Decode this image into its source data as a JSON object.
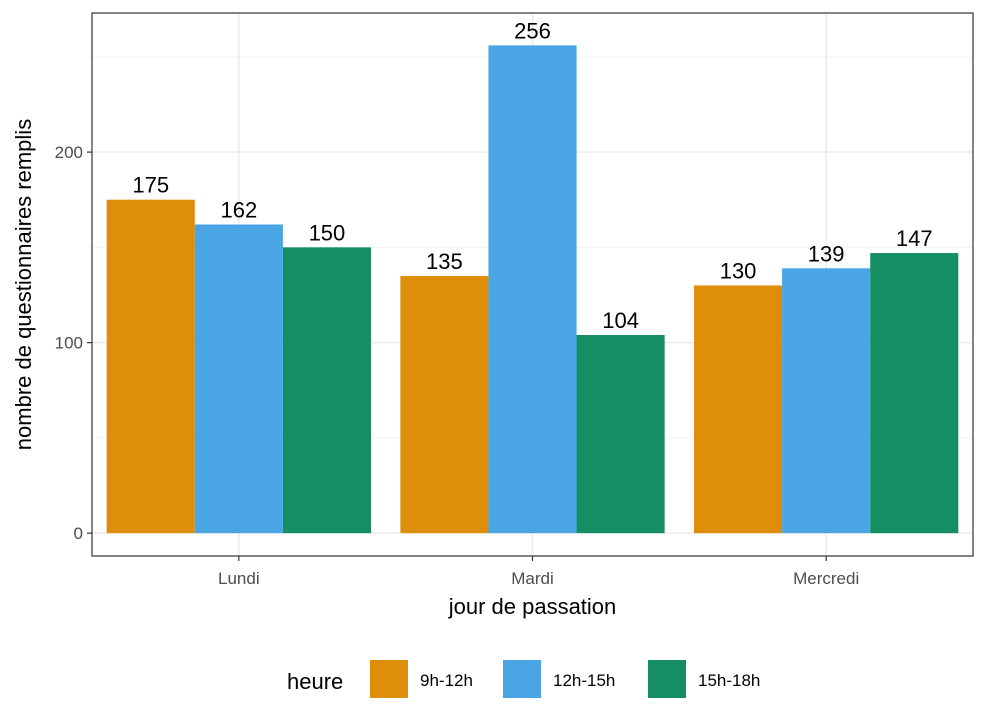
{
  "chart_data": {
    "type": "bar",
    "title": "",
    "xlabel": "jour de passation",
    "ylabel": "nombre de questionnaires remplis",
    "categories": [
      "Lundi",
      "Mardi",
      "Mercredi"
    ],
    "series": [
      {
        "name": "9h-12h",
        "color": "#DF8E0A",
        "values": [
          175,
          135,
          130
        ]
      },
      {
        "name": "12h-15h",
        "color": "#49A5E3",
        "values": [
          162,
          256,
          139
        ]
      },
      {
        "name": "15h-18h",
        "color": "#158E63",
        "values": [
          150,
          104,
          147
        ]
      }
    ],
    "ylim": [
      -12,
      273
    ],
    "y_ticks": [
      0,
      100,
      200
    ],
    "y_tick_labels": [
      "0",
      "100",
      "200"
    ],
    "grid": true,
    "legend": {
      "title": "heure",
      "position": "bottom"
    }
  }
}
